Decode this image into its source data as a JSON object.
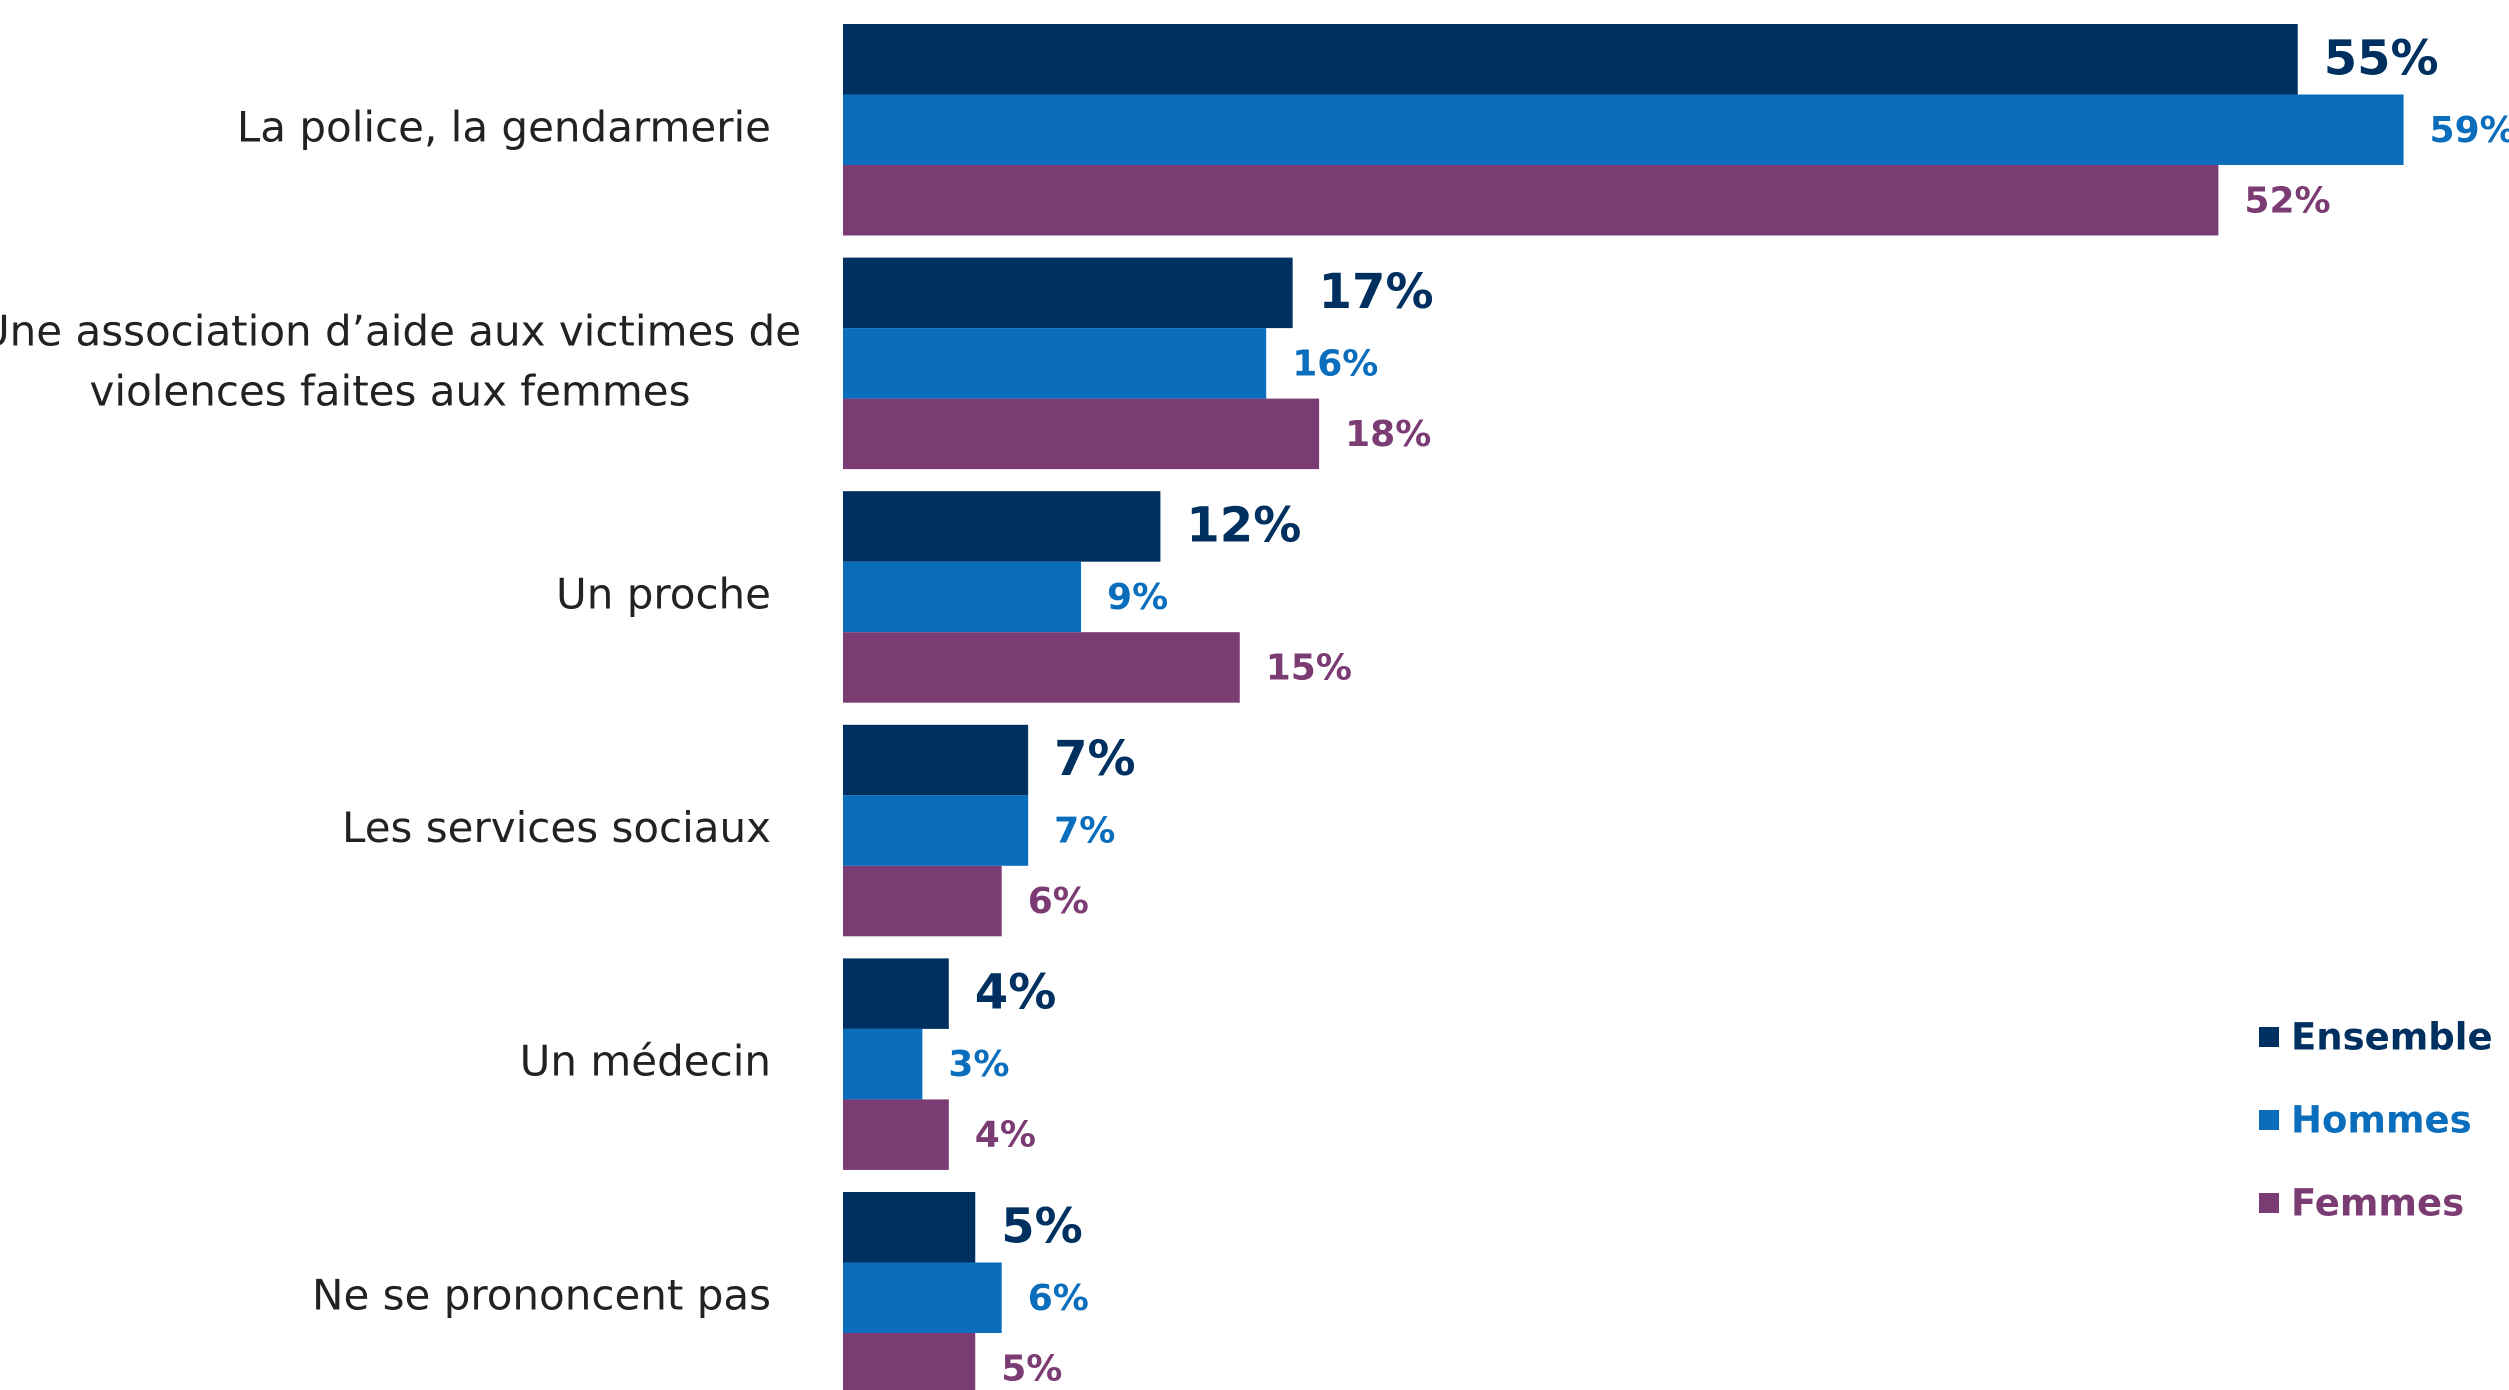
{
  "chart_data": {
    "type": "bar",
    "orientation": "horizontal",
    "categories": [
      "La police, la gendarmerie",
      "Une association d’aide aux victimes de\nviolences faites aux femmes",
      "Un proche",
      "Les services sociaux",
      "Un médecin",
      "Ne se prononcent pas"
    ],
    "series": [
      {
        "name": "Ensemble",
        "color": "#003060",
        "values": [
          55,
          17,
          12,
          7,
          4,
          5
        ],
        "value_labels": [
          "55%",
          "17%",
          "12%",
          "7%",
          "4%",
          "5%"
        ]
      },
      {
        "name": "Hommes",
        "color": "#0a6ebd",
        "values": [
          59,
          16,
          9,
          7,
          3,
          6
        ],
        "value_labels": [
          "59%",
          "16%",
          "9%",
          "7%",
          "3%",
          "6%"
        ]
      },
      {
        "name": "Femmes",
        "color": "#7b3c74",
        "values": [
          52,
          18,
          15,
          6,
          4,
          5
        ],
        "value_labels": [
          "52%",
          "18%",
          "15%",
          "6%",
          "4%",
          "5%"
        ]
      }
    ],
    "legend": "bottom-right"
  }
}
